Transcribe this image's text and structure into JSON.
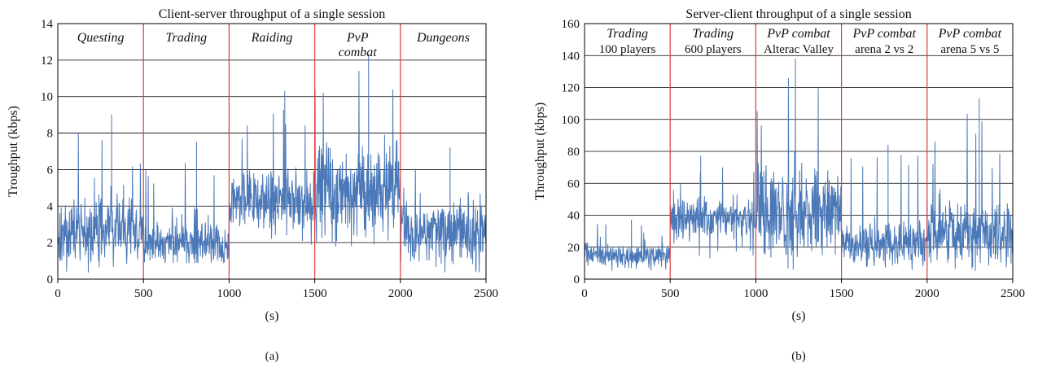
{
  "chart_data": [
    {
      "type": "line",
      "title": "Client-server throughput of a single session",
      "xlabel": "(s)",
      "ylabel": "Troughput (kbps)",
      "caption": "(a)",
      "xlim": [
        0,
        2500
      ],
      "ylim": [
        0,
        14
      ],
      "xticks": [
        0,
        500,
        1000,
        1500,
        2000,
        2500
      ],
      "yticks": [
        0,
        2,
        4,
        6,
        8,
        10,
        12,
        14
      ],
      "grid": "horizontal",
      "line_color": "#4a78b8",
      "divider_color": "#e03b3b",
      "dividers": [
        500,
        1000,
        1500,
        2000
      ],
      "segments": [
        {
          "label": "Questing",
          "start": 0,
          "end": 500,
          "min": 0.3,
          "base": 2.6,
          "spread": 1.3,
          "peak": 9.0
        },
        {
          "label": "Trading",
          "start": 500,
          "end": 1000,
          "min": 0.9,
          "base": 2.0,
          "spread": 0.9,
          "peak": 7.5
        },
        {
          "label": "Raiding",
          "start": 1000,
          "end": 1500,
          "min": 1.5,
          "base": 4.4,
          "spread": 1.3,
          "peak": 10.3
        },
        {
          "label": "PvP combat",
          "start": 1500,
          "end": 2000,
          "min": 1.5,
          "base": 5.0,
          "spread": 1.8,
          "peak": 12.3
        },
        {
          "label": "Dungeons",
          "start": 2000,
          "end": 2500,
          "min": 0.3,
          "base": 2.6,
          "spread": 1.3,
          "peak": 7.2
        }
      ]
    },
    {
      "type": "line",
      "title": "Server-client throughput of a single session",
      "xlabel": "(s)",
      "ylabel": "Throughput (kbps)",
      "caption": "(b)",
      "xlim": [
        0,
        2500
      ],
      "ylim": [
        0,
        160
      ],
      "xticks": [
        0,
        500,
        1000,
        1500,
        2000,
        2500
      ],
      "yticks": [
        0,
        20,
        40,
        60,
        80,
        100,
        120,
        140,
        160
      ],
      "grid": "horizontal",
      "line_color": "#4a78b8",
      "divider_color": "#e03b3b",
      "dividers": [
        500,
        1000,
        1500,
        2000
      ],
      "segments": [
        {
          "label": "Trading",
          "sublabel": "100 players",
          "start": 0,
          "end": 500,
          "min": 5,
          "base": 15,
          "spread": 5,
          "peak": 37
        },
        {
          "label": "Trading",
          "sublabel": "600 players",
          "start": 500,
          "end": 1000,
          "min": 12,
          "base": 37,
          "spread": 9,
          "peak": 77
        },
        {
          "label": "PvP combat",
          "sublabel": "Alterac Valley",
          "start": 1000,
          "end": 1500,
          "min": 5,
          "base": 44,
          "spread": 20,
          "peak": 138
        },
        {
          "label": "PvP combat",
          "sublabel": "arena 2 vs 2",
          "start": 1500,
          "end": 2000,
          "min": 5,
          "base": 22,
          "spread": 10,
          "peak": 84
        },
        {
          "label": "PvP combat",
          "sublabel": "arena 5 vs 5",
          "start": 2000,
          "end": 2500,
          "min": 5,
          "base": 28,
          "spread": 14,
          "peak": 113
        }
      ]
    }
  ]
}
